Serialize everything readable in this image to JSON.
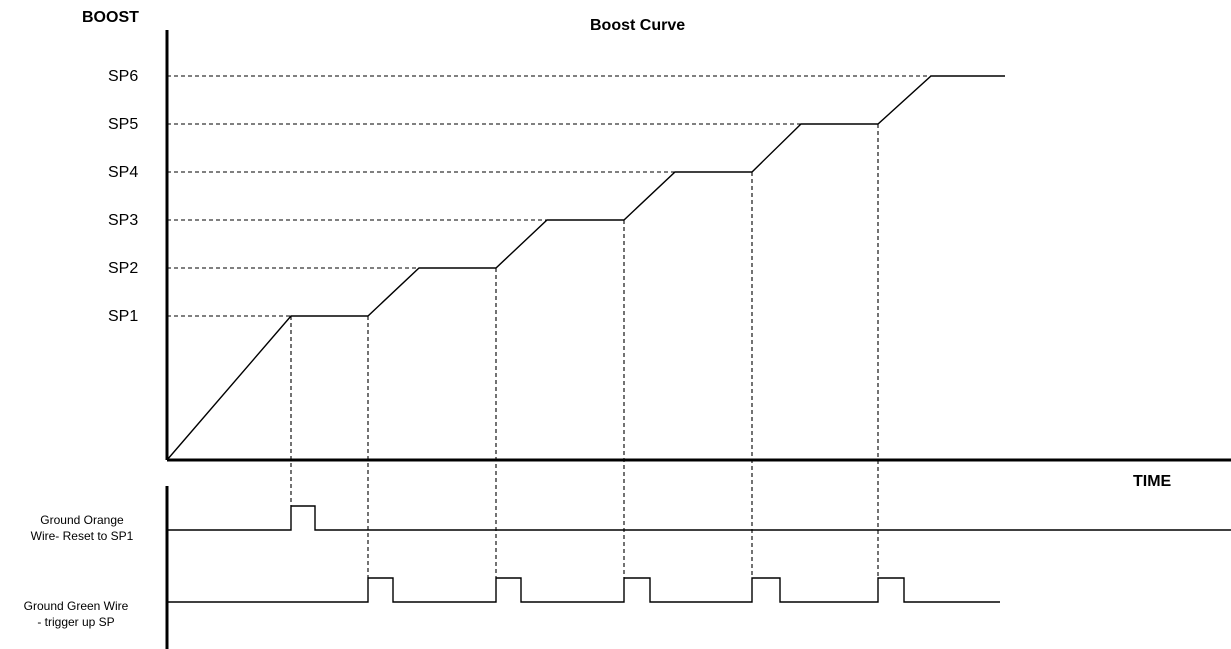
{
  "title": "Boost Curve",
  "y_axis_label": "BOOST",
  "x_axis_label": "TIME",
  "setpoints": [
    "SP1",
    "SP2",
    "SP3",
    "SP4",
    "SP5",
    "SP6"
  ],
  "signals": {
    "orange": {
      "line1": "Ground Orange",
      "line2": "Wire- Reset to SP1",
      "pulse_count": 1
    },
    "green": {
      "line1": "Ground Green Wire",
      "line2": "- trigger up SP",
      "pulse_count": 5
    }
  }
}
